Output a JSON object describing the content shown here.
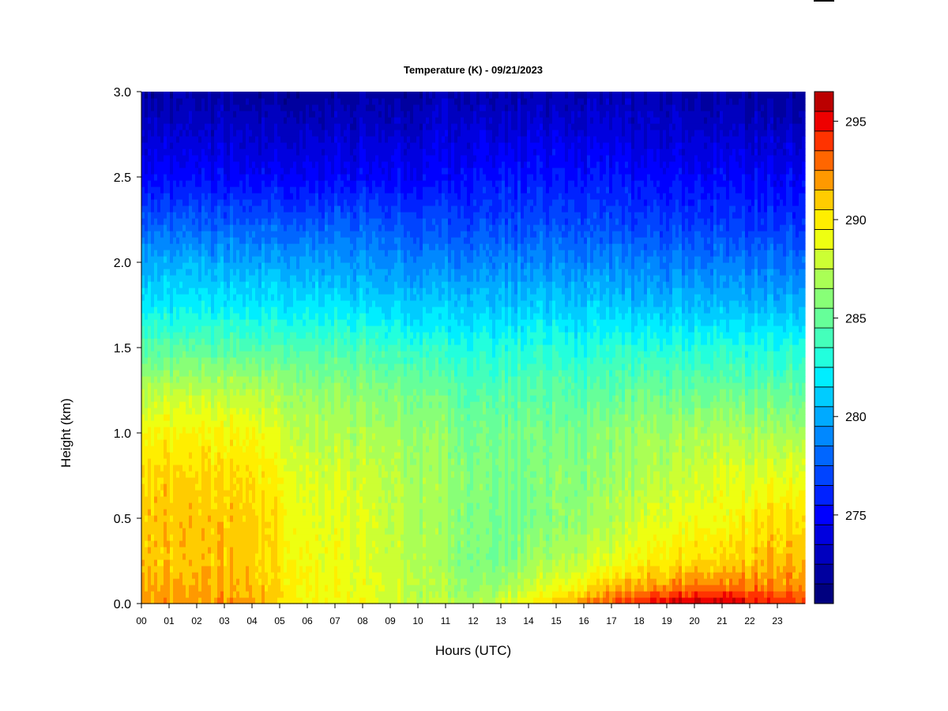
{
  "chart_data": {
    "type": "heatmap",
    "title": "Temperature (K) - 09/21/2023",
    "xlabel": "Hours (UTC)",
    "ylabel": "Height (km)",
    "x_range": [
      0,
      24
    ],
    "y_range": [
      0.0,
      3.0
    ],
    "x_ticks": [
      "00",
      "01",
      "02",
      "03",
      "04",
      "05",
      "06",
      "07",
      "08",
      "09",
      "10",
      "11",
      "12",
      "13",
      "14",
      "15",
      "16",
      "17",
      "18",
      "19",
      "20",
      "21",
      "22",
      "23"
    ],
    "y_ticks": [
      "0.0",
      "0.5",
      "1.0",
      "1.5",
      "2.0",
      "2.5",
      "3.0"
    ],
    "colorbar": {
      "min": 271,
      "max": 297,
      "step": 1,
      "tick_labels": [
        "275",
        "280",
        "285",
        "290",
        "295"
      ],
      "colors": [
        "#00007f",
        "#00009f",
        "#0000bf",
        "#0000df",
        "#0000ff",
        "#0022ff",
        "#0044ff",
        "#0066ff",
        "#0088ff",
        "#00aaff",
        "#00ccff",
        "#00eeff",
        "#22ffdd",
        "#44ffbb",
        "#66ff99",
        "#88ff77",
        "#aaff55",
        "#ccff33",
        "#eeff11",
        "#ffee00",
        "#ffcc00",
        "#ff9900",
        "#ff6600",
        "#ff3300",
        "#ee0000",
        "#bb0000",
        "#880000"
      ]
    },
    "temperature_profile": {
      "hours": [
        0,
        2,
        4,
        6,
        8,
        10,
        11,
        12,
        13,
        14,
        15,
        16,
        17,
        18,
        19,
        20,
        21,
        22,
        23,
        24
      ],
      "heights_km": [
        0.0,
        0.1,
        0.25,
        0.5,
        0.75,
        1.0,
        1.25,
        1.5,
        1.75,
        2.0,
        2.25,
        2.5,
        2.75,
        3.0
      ],
      "values_K": [
        [
          292.5,
          292.0,
          291.5,
          291.5,
          291.0,
          290.0,
          288.0,
          285.0,
          282.5,
          280.5,
          278.0,
          275.5,
          274.0,
          272.5
        ],
        [
          292.5,
          292.0,
          291.5,
          291.5,
          291.0,
          290.0,
          288.0,
          285.0,
          282.5,
          280.5,
          278.0,
          275.5,
          274.0,
          272.5
        ],
        [
          292.5,
          292.0,
          291.5,
          291.5,
          291.0,
          290.0,
          288.0,
          285.0,
          282.5,
          280.5,
          278.0,
          275.5,
          274.0,
          272.5
        ],
        [
          290.0,
          290.0,
          290.0,
          289.5,
          289.0,
          288.0,
          287.0,
          285.0,
          282.5,
          280.5,
          278.0,
          275.5,
          274.0,
          272.5
        ],
        [
          289.5,
          289.5,
          289.0,
          289.0,
          288.5,
          287.5,
          286.5,
          284.5,
          282.0,
          280.0,
          278.0,
          275.5,
          274.0,
          272.5
        ],
        [
          288.0,
          288.0,
          288.0,
          287.5,
          287.5,
          287.0,
          286.0,
          284.0,
          281.5,
          279.5,
          277.5,
          275.5,
          274.0,
          272.5
        ],
        [
          288.0,
          287.5,
          287.0,
          287.0,
          287.0,
          286.5,
          285.5,
          283.5,
          281.5,
          279.5,
          277.5,
          275.5,
          274.5,
          273.0
        ],
        [
          287.5,
          287.0,
          286.5,
          286.5,
          286.5,
          286.0,
          285.0,
          283.5,
          281.5,
          279.5,
          277.5,
          276.0,
          274.5,
          273.0
        ],
        [
          289.0,
          287.0,
          286.0,
          286.0,
          286.0,
          286.0,
          285.0,
          283.5,
          281.5,
          279.5,
          277.5,
          276.0,
          274.5,
          273.0
        ],
        [
          290.0,
          288.5,
          287.0,
          286.0,
          286.0,
          286.0,
          285.0,
          283.5,
          281.5,
          279.5,
          277.5,
          276.0,
          274.5,
          273.0
        ],
        [
          291.5,
          289.5,
          287.5,
          286.5,
          286.5,
          286.0,
          285.0,
          283.5,
          281.5,
          279.5,
          277.5,
          276.0,
          274.5,
          273.0
        ],
        [
          293.0,
          290.5,
          288.5,
          287.0,
          286.5,
          286.0,
          285.0,
          283.5,
          281.5,
          279.5,
          277.5,
          276.0,
          274.5,
          273.0
        ],
        [
          294.0,
          291.5,
          289.0,
          287.5,
          287.0,
          286.5,
          285.0,
          283.5,
          281.5,
          279.5,
          277.5,
          276.0,
          274.5,
          273.0
        ],
        [
          295.0,
          292.0,
          290.0,
          288.5,
          287.5,
          287.0,
          285.5,
          283.5,
          281.0,
          279.0,
          277.0,
          275.5,
          274.0,
          273.0
        ],
        [
          296.0,
          292.5,
          290.5,
          289.0,
          288.0,
          287.0,
          285.5,
          283.5,
          281.0,
          279.0,
          277.0,
          275.5,
          274.0,
          273.0
        ],
        [
          296.5,
          293.0,
          291.0,
          289.5,
          288.5,
          287.5,
          285.5,
          283.5,
          281.0,
          279.0,
          277.0,
          275.5,
          274.0,
          272.5
        ],
        [
          296.5,
          293.0,
          291.0,
          289.5,
          289.0,
          287.5,
          285.5,
          283.5,
          281.0,
          279.0,
          277.0,
          275.5,
          274.0,
          272.5
        ],
        [
          296.0,
          293.0,
          291.5,
          290.5,
          289.0,
          287.5,
          285.5,
          283.5,
          281.0,
          279.0,
          277.0,
          275.5,
          274.0,
          272.5
        ],
        [
          295.0,
          293.0,
          292.0,
          291.0,
          289.5,
          287.5,
          285.5,
          283.5,
          281.0,
          279.0,
          277.0,
          275.5,
          274.0,
          272.5
        ],
        [
          294.5,
          293.0,
          292.0,
          291.0,
          289.5,
          287.5,
          285.5,
          283.5,
          281.0,
          279.0,
          277.0,
          275.5,
          274.0,
          272.5
        ]
      ]
    }
  }
}
